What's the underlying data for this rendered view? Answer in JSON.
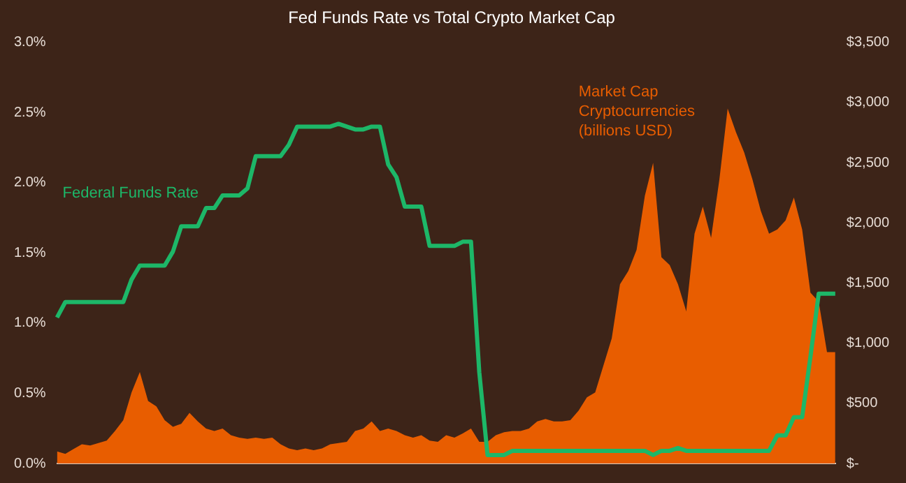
{
  "chart_data": {
    "type": "line",
    "title": "Fed Funds Rate vs Total Crypto Market Cap",
    "categories": [
      null,
      null,
      null,
      null,
      null,
      null,
      null,
      null,
      null,
      null,
      null,
      null,
      null,
      null,
      null,
      null,
      null,
      null,
      null,
      null,
      null,
      null,
      null,
      null,
      null,
      null,
      null,
      null,
      null,
      null,
      null,
      null,
      null,
      null,
      null,
      null,
      null,
      null,
      null,
      null,
      null,
      null,
      null,
      null,
      null,
      null,
      null,
      null,
      null,
      null,
      null,
      null,
      null,
      null,
      null,
      null,
      null,
      null,
      null,
      null,
      null,
      null,
      null,
      null,
      null,
      null,
      null,
      null,
      null,
      null,
      null,
      null,
      null,
      null,
      null,
      null,
      null,
      null,
      null,
      null,
      null,
      null,
      null,
      null,
      null,
      null,
      null,
      null,
      null,
      null,
      null,
      null,
      null,
      null,
      null
    ],
    "series": [
      {
        "name": "Market Cap Cryptocurrencies (billions USD)",
        "type": "area",
        "axis": "y2",
        "color": "#e85d00",
        "values": [
          100,
          80,
          120,
          160,
          150,
          170,
          190,
          270,
          360,
          590,
          760,
          520,
          475,
          360,
          305,
          330,
          420,
          350,
          290,
          270,
          290,
          235,
          215,
          205,
          215,
          205,
          215,
          160,
          125,
          110,
          125,
          110,
          125,
          160,
          170,
          180,
          270,
          290,
          350,
          270,
          290,
          270,
          235,
          215,
          235,
          190,
          180,
          235,
          215,
          250,
          290,
          180,
          180,
          235,
          260,
          270,
          270,
          290,
          350,
          370,
          350,
          350,
          360,
          440,
          550,
          590,
          815,
          1040,
          1490,
          1600,
          1775,
          2225,
          2500,
          1715,
          1650,
          1490,
          1265,
          1910,
          2135,
          1875,
          2360,
          2950,
          2755,
          2585,
          2360,
          2100,
          1910,
          1945,
          2020,
          2210,
          1945,
          1420,
          1345,
          925,
          925
        ]
      },
      {
        "name": "Federal Funds Rate",
        "type": "line",
        "color": "#1db768",
        "values": [
          1.04,
          1.15,
          1.15,
          1.15,
          1.15,
          1.15,
          1.15,
          1.15,
          1.15,
          1.31,
          1.41,
          1.41,
          1.41,
          1.41,
          1.51,
          1.69,
          1.69,
          1.69,
          1.82,
          1.82,
          1.91,
          1.91,
          1.91,
          1.96,
          2.19,
          2.19,
          2.19,
          2.19,
          2.27,
          2.4,
          2.4,
          2.4,
          2.4,
          2.4,
          2.42,
          2.4,
          2.38,
          2.38,
          2.4,
          2.4,
          2.13,
          2.04,
          1.83,
          1.83,
          1.83,
          1.55,
          1.55,
          1.55,
          1.55,
          1.58,
          1.58,
          0.65,
          0.06,
          0.06,
          0.06,
          0.09,
          0.09,
          0.09,
          0.09,
          0.09,
          0.09,
          0.09,
          0.09,
          0.09,
          0.09,
          0.09,
          0.09,
          0.09,
          0.09,
          0.09,
          0.09,
          0.09,
          0.06,
          0.09,
          0.09,
          0.11,
          0.09,
          0.09,
          0.09,
          0.09,
          0.09,
          0.09,
          0.09,
          0.09,
          0.09,
          0.09,
          0.09,
          0.2,
          0.2,
          0.33,
          0.33,
          0.76,
          1.21,
          1.21,
          1.21
        ]
      }
    ],
    "ylim": [
      0,
      3
    ],
    "yticks": [
      {
        "value": 0,
        "label": "0.0%"
      },
      {
        "value": 0.5,
        "label": "0.5%"
      },
      {
        "value": 1,
        "label": "1.0%"
      },
      {
        "value": 1.5,
        "label": "1.5%"
      },
      {
        "value": 2,
        "label": "2.0%"
      },
      {
        "value": 2.5,
        "label": "2.5%"
      },
      {
        "value": 3,
        "label": "3.0%"
      }
    ],
    "y2lim": [
      0,
      3500
    ],
    "y2ticks": [
      {
        "value": 0,
        "label": "$-"
      },
      {
        "value": 500,
        "label": "$500"
      },
      {
        "value": 1000,
        "label": "$1,000"
      },
      {
        "value": 1500,
        "label": "$1,500"
      },
      {
        "value": 2000,
        "label": "$2,000"
      },
      {
        "value": 2500,
        "label": "$2,500"
      },
      {
        "value": 3000,
        "label": "$3,000"
      },
      {
        "value": 3500,
        "label": "$3,500"
      }
    ],
    "grid": false,
    "legend": false
  }
}
